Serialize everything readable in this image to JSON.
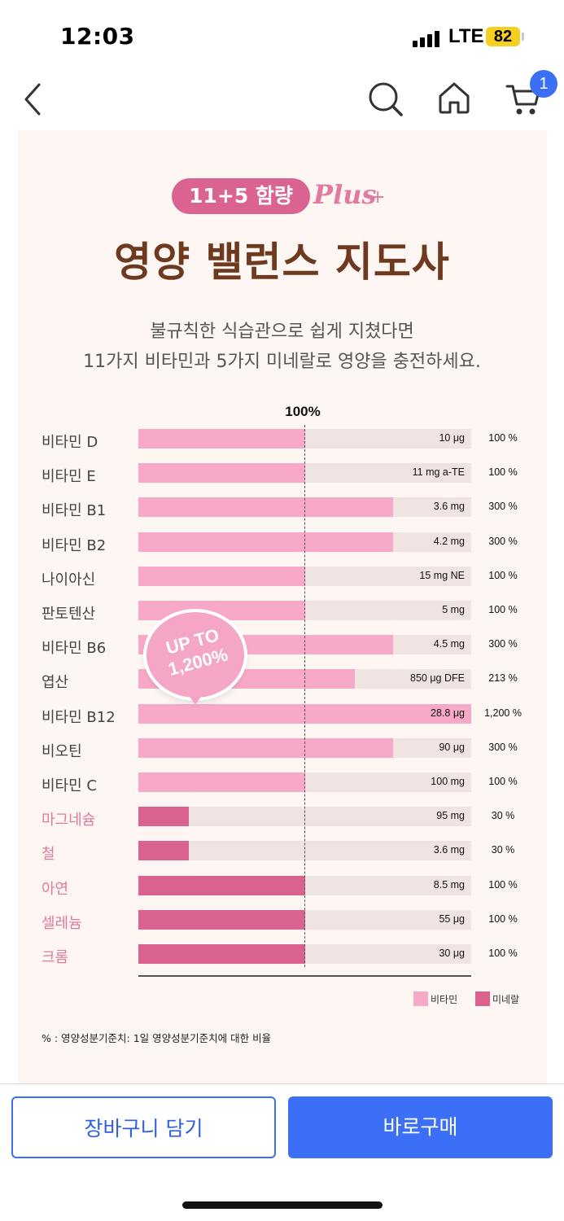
{
  "status_bar": {
    "time": "12:03",
    "network": "LTE",
    "battery": "82"
  },
  "nav": {
    "cart_badge": "1",
    "icons": [
      "back-icon",
      "search-icon",
      "home-icon",
      "cart-icon"
    ]
  },
  "hero": {
    "pill": "11+5 함량",
    "plus_text": "Plus",
    "plus_sign": "+",
    "title": "영양 밸런스 지도사",
    "subtitle_1": "불규칙한 식습관으로 쉽게 지쳤다면",
    "subtitle_2": "11가지 비타민과 5가지 미네랄로 영양을 충전하세요."
  },
  "colors": {
    "vitamin": "#f8a9c8",
    "mineral": "#d9628f",
    "track": "#f0e4e2",
    "title": "#6d3a1f",
    "primary": "#3b6ff5"
  },
  "chart_data": {
    "type": "bar",
    "reference_label": "100%",
    "items": [
      {
        "name": "비타민 D",
        "amount": "10 μg",
        "percent_label": "100 %",
        "percent": 100,
        "kind": "vitamin"
      },
      {
        "name": "비타민 E",
        "amount": "11 mg a-TE",
        "percent_label": "100 %",
        "percent": 100,
        "kind": "vitamin"
      },
      {
        "name": "비타민 B1",
        "amount": "3.6 mg",
        "percent_label": "300 %",
        "percent": 300,
        "kind": "vitamin"
      },
      {
        "name": "비타민 B2",
        "amount": "4.2 mg",
        "percent_label": "300 %",
        "percent": 300,
        "kind": "vitamin"
      },
      {
        "name": "나이아신",
        "amount": "15 mg NE",
        "percent_label": "100 %",
        "percent": 100,
        "kind": "vitamin"
      },
      {
        "name": "판토텐산",
        "amount": "5 mg",
        "percent_label": "100 %",
        "percent": 100,
        "kind": "vitamin"
      },
      {
        "name": "비타민 B6",
        "amount": "4.5 mg",
        "percent_label": "300 %",
        "percent": 300,
        "kind": "vitamin"
      },
      {
        "name": "엽산",
        "amount": "850 μg DFE",
        "percent_label": "213 %",
        "percent": 213,
        "kind": "vitamin"
      },
      {
        "name": "비타민 B12",
        "amount": "28.8 μg",
        "percent_label": "1,200 %",
        "percent": 1200,
        "kind": "vitamin"
      },
      {
        "name": "비오틴",
        "amount": "90 μg",
        "percent_label": "300 %",
        "percent": 300,
        "kind": "vitamin"
      },
      {
        "name": "비타민 C",
        "amount": "100 mg",
        "percent_label": "100 %",
        "percent": 100,
        "kind": "vitamin"
      },
      {
        "name": "마그네슘",
        "amount": "95 mg",
        "percent_label": "30 %",
        "percent": 30,
        "kind": "mineral"
      },
      {
        "name": "철",
        "amount": "3.6 mg",
        "percent_label": "30 %",
        "percent": 30,
        "kind": "mineral"
      },
      {
        "name": "아연",
        "amount": "8.5 mg",
        "percent_label": "100 %",
        "percent": 100,
        "kind": "mineral"
      },
      {
        "name": "셀레늄",
        "amount": "55 μg",
        "percent_label": "100 %",
        "percent": 100,
        "kind": "mineral"
      },
      {
        "name": "크롬",
        "amount": "30 μg",
        "percent_label": "100 %",
        "percent": 100,
        "kind": "mineral"
      }
    ],
    "legend": [
      {
        "label": "비타민",
        "kind": "vitamin"
      },
      {
        "label": "미네랄",
        "kind": "mineral"
      }
    ],
    "callout": {
      "line1": "UP TO",
      "line2": "1,200%"
    }
  },
  "footnote": "% : 영양성분기준치: 1일 영양성분기준치에 대한 비율",
  "actions": {
    "add_to_cart": "장바구니 담기",
    "buy_now": "바로구매"
  }
}
